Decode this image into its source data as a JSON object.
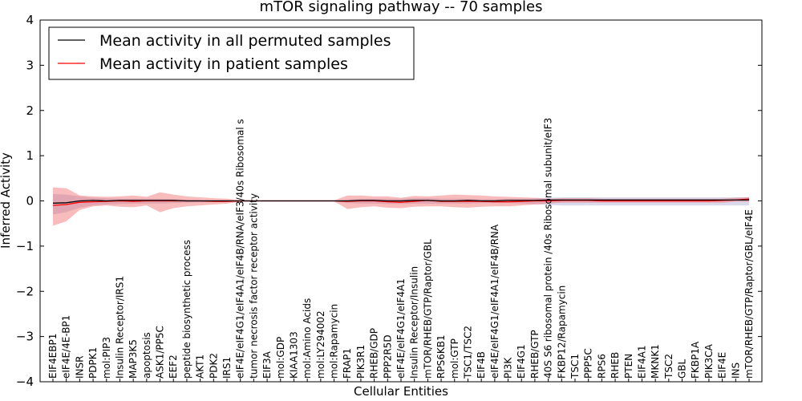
{
  "chart_data": {
    "type": "line",
    "title": "mTOR signaling pathway -- 70 samples",
    "xlabel": "Cellular Entities",
    "ylabel": "Inferred Activity",
    "ylim": [
      -4,
      4
    ],
    "yticks": [
      -4,
      -3,
      -2,
      -1,
      0,
      1,
      2,
      3,
      4
    ],
    "ytick_labels": [
      "−4",
      "−3",
      "−2",
      "−1",
      "0",
      "1",
      "2",
      "3",
      "4"
    ],
    "grid": false,
    "legend_position": "top-left",
    "categories": [
      "EIF4EBP1",
      "eIF4E/4E-BP1",
      "INSR",
      "PDPK1",
      "mol:PIP3",
      "Insulin Receptor/IRS1",
      "MAP3K5",
      "apoptosis",
      "ASK1/PP5C",
      "EEF2",
      "peptide biosynthetic process",
      "AKT1",
      "PDK2",
      "IRS1",
      "eIF4E/eIF4G1/eIF4A1/eIF4B/RNA/eIF3/40s Ribosomal s",
      "tumor necrosis factor receptor activity",
      "EIF3A",
      "mol:GDP",
      "KIAA1303",
      "mol:Amino Acids",
      "mol:LY294002",
      "mol:Rapamycin",
      "FRAP1",
      "PIK3R1",
      "RHEB/GDP",
      "PPP2R5D",
      "eIF4E/eIF4G1/eIF4A1",
      "Insulin Receptor/Insulin",
      "mTOR/RHEB/GTP/Raptor/GBL",
      "RPS6KB1",
      "mol:GTP",
      "TSC1/TSC2",
      "EIF4B",
      "eIF4E/eIF4G1/eIF4A1/eIF4B/RNA",
      "PI3K",
      "EIF4G1",
      "RHEB/GTP",
      "40S S6 ribosomal protein /40s Ribosomal subunit/eIF3",
      "FKBP12/Rapamycin",
      "TSC1",
      "PPP5C",
      "RPS6",
      "RHEB",
      "PTEN",
      "EIF4A1",
      "MKNK1",
      "TSC2",
      "GBL",
      "FKBP1A",
      "PIK3CA",
      "EIF4E",
      "INS",
      "mTOR/RHEB/GTP/Raptor/GBL/eIF4E"
    ],
    "series": [
      {
        "name": "Mean activity in all permuted samples",
        "color": "#000000",
        "values": [
          -0.05,
          -0.04,
          0.0,
          0.01,
          0.0,
          0.01,
          0.01,
          0.01,
          0.01,
          0.01,
          0.0,
          0.0,
          0.0,
          0.0,
          0.0,
          0.0,
          0.0,
          0.0,
          0.0,
          0.0,
          0.0,
          0.0,
          0.0,
          0.01,
          0.01,
          0.0,
          0.0,
          0.01,
          0.01,
          0.0,
          0.0,
          0.01,
          0.0,
          0.0,
          0.01,
          0.01,
          0.01,
          0.02,
          0.02,
          0.02,
          0.02,
          0.02,
          0.02,
          0.02,
          0.02,
          0.02,
          0.02,
          0.02,
          0.02,
          0.02,
          0.02,
          0.02,
          0.02
        ],
        "band_upper": [
          0.15,
          0.14,
          0.1,
          0.07,
          0.06,
          0.05,
          0.05,
          0.05,
          0.05,
          0.04,
          0.03,
          0.02,
          0.02,
          0.02,
          0.01,
          0.01,
          0.01,
          0.01,
          0.01,
          0.01,
          0.01,
          0.01,
          0.03,
          0.05,
          0.05,
          0.05,
          0.05,
          0.06,
          0.06,
          0.05,
          0.05,
          0.05,
          0.04,
          0.04,
          0.05,
          0.05,
          0.06,
          0.07,
          0.08,
          0.08,
          0.08,
          0.08,
          0.08,
          0.08,
          0.08,
          0.08,
          0.08,
          0.08,
          0.08,
          0.08,
          0.08,
          0.08,
          0.08
        ],
        "band_lower": [
          -0.3,
          -0.25,
          -0.15,
          -0.1,
          -0.08,
          -0.07,
          -0.06,
          -0.06,
          -0.06,
          -0.05,
          -0.04,
          -0.03,
          -0.02,
          -0.02,
          -0.01,
          -0.01,
          -0.01,
          -0.01,
          -0.01,
          -0.01,
          -0.01,
          -0.01,
          -0.05,
          -0.06,
          -0.06,
          -0.07,
          -0.07,
          -0.06,
          -0.06,
          -0.06,
          -0.06,
          -0.06,
          -0.05,
          -0.05,
          -0.05,
          -0.06,
          -0.07,
          -0.09,
          -0.1,
          -0.1,
          -0.1,
          -0.1,
          -0.1,
          -0.1,
          -0.1,
          -0.1,
          -0.1,
          -0.1,
          -0.1,
          -0.1,
          -0.1,
          -0.1,
          -0.1
        ]
      },
      {
        "name": "Mean activity in patient samples",
        "color": "#ff0000",
        "values": [
          -0.1,
          -0.08,
          -0.03,
          -0.02,
          -0.01,
          0.0,
          -0.01,
          0.0,
          0.0,
          0.0,
          0.0,
          0.0,
          -0.01,
          -0.01,
          0.0,
          0.0,
          0.0,
          0.0,
          0.0,
          0.0,
          0.0,
          0.0,
          -0.01,
          0.0,
          0.0,
          -0.02,
          -0.03,
          -0.01,
          0.01,
          -0.01,
          -0.01,
          -0.01,
          -0.01,
          -0.02,
          -0.02,
          -0.01,
          0.0,
          0.0,
          0.01,
          0.01,
          0.01,
          0.0,
          0.0,
          0.0,
          0.0,
          0.0,
          0.0,
          0.0,
          0.0,
          0.0,
          0.01,
          0.02,
          0.04
        ],
        "band_upper": [
          0.3,
          0.28,
          0.12,
          0.1,
          0.09,
          0.1,
          0.12,
          0.09,
          0.19,
          0.14,
          0.1,
          0.08,
          0.06,
          0.05,
          0.02,
          0.01,
          0.01,
          0.01,
          0.01,
          0.01,
          0.01,
          0.01,
          0.12,
          0.12,
          0.1,
          0.1,
          0.07,
          0.11,
          0.1,
          0.12,
          0.14,
          0.13,
          0.12,
          0.1,
          0.09,
          0.08,
          0.07,
          0.05,
          0.06,
          0.06,
          0.06,
          0.05,
          0.05,
          0.05,
          0.05,
          0.05,
          0.05,
          0.05,
          0.05,
          0.05,
          0.05,
          0.07,
          0.08
        ],
        "band_lower": [
          -0.55,
          -0.45,
          -0.2,
          -0.12,
          -0.1,
          -0.13,
          -0.14,
          -0.1,
          -0.25,
          -0.16,
          -0.12,
          -0.1,
          -0.08,
          -0.06,
          -0.02,
          -0.01,
          -0.01,
          -0.01,
          -0.01,
          -0.01,
          -0.01,
          -0.01,
          -0.18,
          -0.14,
          -0.12,
          -0.15,
          -0.16,
          -0.13,
          -0.12,
          -0.12,
          -0.14,
          -0.15,
          -0.13,
          -0.12,
          -0.12,
          -0.1,
          -0.08,
          -0.06,
          -0.04,
          -0.04,
          -0.04,
          -0.04,
          -0.04,
          -0.04,
          -0.04,
          -0.04,
          -0.04,
          -0.04,
          -0.04,
          -0.04,
          -0.04,
          -0.02,
          -0.02
        ]
      }
    ]
  }
}
